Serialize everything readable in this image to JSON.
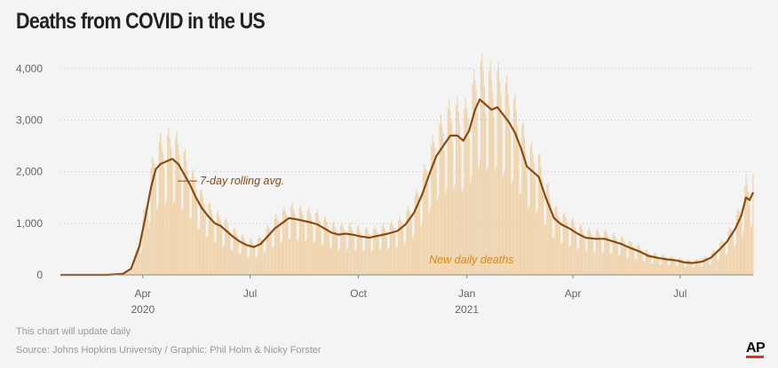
{
  "header": {
    "title": "Deaths from COVID in the US"
  },
  "footer": {
    "note": "This chart will update daily",
    "source": "Source: Johns Hopkins University / Graphic: Phil Holm & Nicky Forster",
    "logo": "AP"
  },
  "chart_data": {
    "type": "area",
    "title": "Deaths from COVID in the US",
    "xlabel": "",
    "ylabel": "",
    "x_start": "2020-01-22",
    "x_end": "2021-09-01",
    "ylim": [
      0,
      4400
    ],
    "y_ticks": [
      {
        "value": 0,
        "label": "0"
      },
      {
        "value": 1000,
        "label": "1,000"
      },
      {
        "value": 2000,
        "label": "2,000"
      },
      {
        "value": 3000,
        "label": "3,000"
      },
      {
        "value": 4000,
        "label": "4,000"
      }
    ],
    "x_ticks": [
      {
        "date": "2020-04-01",
        "label": "Apr",
        "year": "2020"
      },
      {
        "date": "2020-07-01",
        "label": "Jul",
        "year": ""
      },
      {
        "date": "2020-10-01",
        "label": "Oct",
        "year": ""
      },
      {
        "date": "2021-01-01",
        "label": "Jan",
        "year": "2021"
      },
      {
        "date": "2021-04-01",
        "label": "Apr",
        "year": ""
      },
      {
        "date": "2021-07-01",
        "label": "Jul",
        "year": ""
      }
    ],
    "series": [
      {
        "name": "7-day rolling avg.",
        "color": "#8b4a0f",
        "points": [
          [
            "2020-01-22",
            0
          ],
          [
            "2020-03-01",
            0
          ],
          [
            "2020-03-15",
            20
          ],
          [
            "2020-03-22",
            120
          ],
          [
            "2020-03-29",
            550
          ],
          [
            "2020-04-03",
            1100
          ],
          [
            "2020-04-08",
            1700
          ],
          [
            "2020-04-12",
            2050
          ],
          [
            "2020-04-16",
            2150
          ],
          [
            "2020-04-21",
            2200
          ],
          [
            "2020-04-26",
            2250
          ],
          [
            "2020-05-01",
            2150
          ],
          [
            "2020-05-06",
            1950
          ],
          [
            "2020-05-11",
            1750
          ],
          [
            "2020-05-16",
            1500
          ],
          [
            "2020-05-21",
            1300
          ],
          [
            "2020-05-26",
            1150
          ],
          [
            "2020-06-01",
            1000
          ],
          [
            "2020-06-06",
            950
          ],
          [
            "2020-06-11",
            850
          ],
          [
            "2020-06-16",
            750
          ],
          [
            "2020-06-22",
            650
          ],
          [
            "2020-06-28",
            580
          ],
          [
            "2020-07-04",
            540
          ],
          [
            "2020-07-10",
            600
          ],
          [
            "2020-07-16",
            750
          ],
          [
            "2020-07-22",
            900
          ],
          [
            "2020-07-28",
            1000
          ],
          [
            "2020-08-03",
            1100
          ],
          [
            "2020-08-09",
            1080
          ],
          [
            "2020-08-15",
            1050
          ],
          [
            "2020-08-21",
            1020
          ],
          [
            "2020-08-27",
            980
          ],
          [
            "2020-09-02",
            900
          ],
          [
            "2020-09-08",
            820
          ],
          [
            "2020-09-14",
            780
          ],
          [
            "2020-09-20",
            800
          ],
          [
            "2020-09-26",
            780
          ],
          [
            "2020-10-02",
            750
          ],
          [
            "2020-10-10",
            720
          ],
          [
            "2020-10-18",
            760
          ],
          [
            "2020-10-26",
            800
          ],
          [
            "2020-11-03",
            850
          ],
          [
            "2020-11-10",
            980
          ],
          [
            "2020-11-17",
            1200
          ],
          [
            "2020-11-24",
            1550
          ],
          [
            "2020-12-01",
            2000
          ],
          [
            "2020-12-06",
            2300
          ],
          [
            "2020-12-12",
            2500
          ],
          [
            "2020-12-18",
            2700
          ],
          [
            "2020-12-24",
            2700
          ],
          [
            "2020-12-29",
            2600
          ],
          [
            "2021-01-03",
            2800
          ],
          [
            "2021-01-08",
            3200
          ],
          [
            "2021-01-12",
            3400
          ],
          [
            "2021-01-17",
            3300
          ],
          [
            "2021-01-22",
            3200
          ],
          [
            "2021-01-27",
            3250
          ],
          [
            "2021-02-01",
            3100
          ],
          [
            "2021-02-06",
            2950
          ],
          [
            "2021-02-11",
            2750
          ],
          [
            "2021-02-16",
            2450
          ],
          [
            "2021-02-21",
            2100
          ],
          [
            "2021-02-26",
            2000
          ],
          [
            "2021-03-03",
            1900
          ],
          [
            "2021-03-09",
            1500
          ],
          [
            "2021-03-16",
            1100
          ],
          [
            "2021-03-22",
            980
          ],
          [
            "2021-03-29",
            900
          ],
          [
            "2021-04-05",
            800
          ],
          [
            "2021-04-12",
            720
          ],
          [
            "2021-04-20",
            700
          ],
          [
            "2021-04-28",
            700
          ],
          [
            "2021-05-05",
            650
          ],
          [
            "2021-05-12",
            600
          ],
          [
            "2021-05-20",
            520
          ],
          [
            "2021-05-28",
            450
          ],
          [
            "2021-06-04",
            370
          ],
          [
            "2021-06-12",
            330
          ],
          [
            "2021-06-20",
            300
          ],
          [
            "2021-06-28",
            280
          ],
          [
            "2021-07-05",
            240
          ],
          [
            "2021-07-12",
            230
          ],
          [
            "2021-07-20",
            260
          ],
          [
            "2021-07-27",
            330
          ],
          [
            "2021-08-03",
            480
          ],
          [
            "2021-08-10",
            650
          ],
          [
            "2021-08-17",
            900
          ],
          [
            "2021-08-22",
            1150
          ],
          [
            "2021-08-26",
            1500
          ],
          [
            "2021-08-29",
            1450
          ],
          [
            "2021-09-01",
            1600
          ]
        ]
      },
      {
        "name": "New daily deaths",
        "color": "#efd3aa"
      }
    ],
    "annotations": [
      {
        "text": "7-day rolling avg.",
        "series": "7-day rolling avg.",
        "date": "2020-05-08",
        "value": 1750
      },
      {
        "text": "New daily deaths",
        "series": "New daily deaths",
        "date": "2020-11-30",
        "value": 220
      }
    ]
  }
}
